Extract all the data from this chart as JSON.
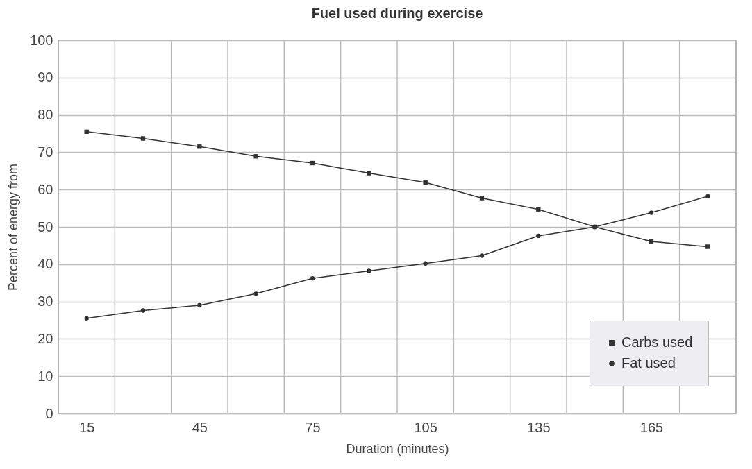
{
  "chart_data": {
    "type": "line",
    "title": "Fuel used during exercise",
    "xlabel": "Duration (minutes)",
    "ylabel": "Percent of energy from",
    "x": [
      15,
      30,
      45,
      60,
      75,
      90,
      105,
      120,
      135,
      150,
      165,
      180
    ],
    "series": [
      {
        "name": "Carbs used",
        "color": "#333333",
        "marker": "square",
        "values": [
          75.5,
          73.7,
          71.5,
          68.9,
          67.1,
          64.4,
          61.9,
          57.7,
          54.7,
          50,
          46.1,
          44.7
        ]
      },
      {
        "name": "Fat used",
        "color": "#333333",
        "marker": "circle",
        "values": [
          25.5,
          27.6,
          29,
          32.1,
          36.2,
          38.2,
          40.2,
          42.3,
          47.6,
          50,
          53.8,
          58.2
        ]
      }
    ],
    "xlim": [
      7.5,
      187.5
    ],
    "xticks": [
      15,
      {
        "value": 22.5,
        "label": null
      },
      {
        "value": 37.5,
        "label": null
      },
      45,
      {
        "value": 52.5,
        "label": null
      },
      {
        "value": 67.5,
        "label": null
      },
      75,
      {
        "value": 82.5,
        "label": null
      },
      {
        "value": 97.5,
        "label": null
      },
      105,
      {
        "value": 112.5,
        "label": null
      },
      {
        "value": 127.5,
        "label": null
      },
      135,
      {
        "value": 142.5,
        "label": null
      },
      {
        "value": 157.5,
        "label": null
      },
      165,
      {
        "value": 172.5,
        "label": null
      }
    ],
    "ylim": [
      0,
      100
    ],
    "yticks": [
      0,
      10,
      20,
      30,
      40,
      50,
      60,
      70,
      80,
      90,
      100
    ],
    "grid": true,
    "legend": "bottom right"
  }
}
